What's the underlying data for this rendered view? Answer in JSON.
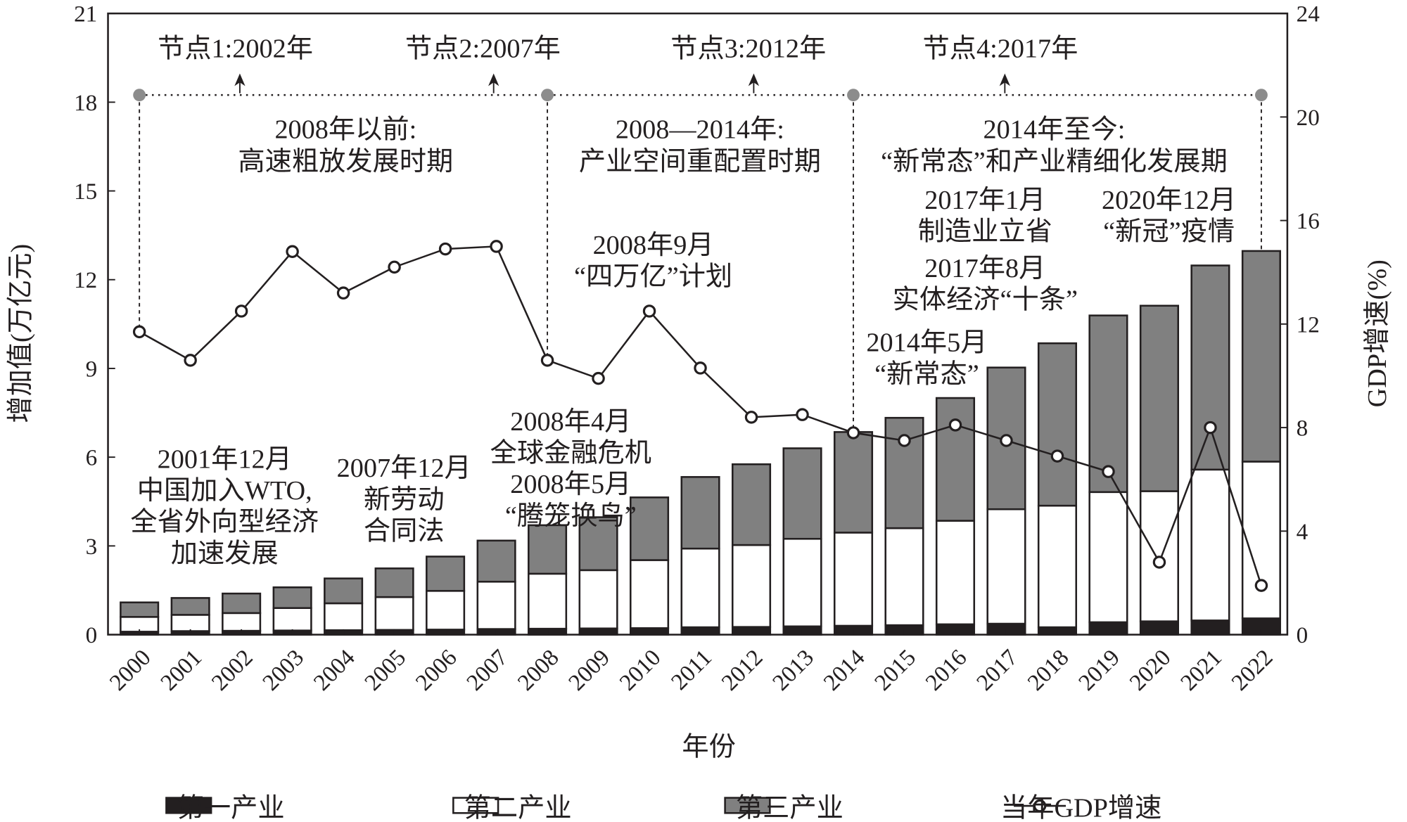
{
  "chart_data": {
    "type": "bar+line",
    "xlabel": "年份",
    "ylabel_left": "增加值(万亿元)",
    "ylabel_right": "GDP增速(%)",
    "ylim_left": [
      0,
      21
    ],
    "ylim_right": [
      0,
      24
    ],
    "yticks_left": [
      "0",
      "3",
      "6",
      "9",
      "12",
      "15",
      "18",
      "21"
    ],
    "yticks_right": [
      "0",
      "4",
      "8",
      "12",
      "16",
      "20",
      "24"
    ],
    "categories": [
      "2000",
      "2001",
      "2002",
      "2003",
      "2004",
      "2005",
      "2006",
      "2007",
      "2008",
      "2009",
      "2010",
      "2011",
      "2012",
      "2013",
      "2014",
      "2015",
      "2016",
      "2017",
      "2018",
      "2019",
      "2020",
      "2021",
      "2022"
    ],
    "series": [
      {
        "name": "第一产业",
        "type": "stacked-bar",
        "color": "#231f20",
        "values": [
          0.1,
          0.12,
          0.13,
          0.14,
          0.15,
          0.16,
          0.17,
          0.19,
          0.2,
          0.21,
          0.22,
          0.25,
          0.26,
          0.28,
          0.3,
          0.32,
          0.35,
          0.37,
          0.25,
          0.42,
          0.45,
          0.48,
          0.55
        ]
      },
      {
        "name": "第二产业",
        "type": "stacked-bar",
        "color": "#ffffff",
        "values": [
          0.5,
          0.55,
          0.6,
          0.76,
          0.91,
          1.11,
          1.31,
          1.6,
          1.86,
          1.97,
          2.3,
          2.66,
          2.77,
          2.96,
          3.15,
          3.28,
          3.5,
          3.87,
          4.11,
          4.4,
          4.4,
          5.1,
          5.3
        ]
      },
      {
        "name": "第三产业",
        "type": "stacked-bar",
        "color": "#808080",
        "values": [
          0.49,
          0.57,
          0.66,
          0.7,
          0.84,
          0.97,
          1.16,
          1.39,
          1.64,
          1.79,
          2.12,
          2.42,
          2.73,
          3.06,
          3.4,
          3.73,
          4.15,
          4.79,
          5.49,
          5.97,
          6.27,
          6.9,
          7.12
        ]
      },
      {
        "name": "当年GDP增速",
        "type": "line",
        "axis": "right",
        "color": "#231f20",
        "values": [
          11.7,
          10.6,
          12.5,
          14.8,
          13.2,
          14.2,
          14.9,
          15.0,
          10.6,
          9.9,
          12.5,
          10.3,
          8.4,
          8.5,
          7.8,
          7.5,
          8.1,
          7.5,
          6.9,
          6.3,
          2.8,
          8.0,
          1.9
        ]
      }
    ],
    "nodes": [
      {
        "year": "2000",
        "label": ""
      },
      {
        "year": "2008",
        "label": ""
      },
      {
        "year": "2014",
        "label": ""
      },
      {
        "year": "2022",
        "label": ""
      }
    ],
    "node_labels": [
      "节点1:2002年",
      "节点2:2007年",
      "节点3:2012年",
      "节点4:2017年"
    ],
    "periods": [
      [
        "2008年以前:",
        "高速粗放发展时期"
      ],
      [
        "2008—2014年:",
        "产业空间重配置时期"
      ],
      [
        "2014年至今:",
        "“新常态”和产业精细化发展期"
      ]
    ],
    "events": [
      [
        "2001年12月",
        "中国加入WTO,",
        "全省外向型经济",
        "加速发展"
      ],
      [
        "2007年12月",
        "新劳动",
        "合同法"
      ],
      [
        "2008年4月",
        "全球金融危机",
        "2008年5月",
        "“腾笼换鸟”"
      ],
      [
        "2008年9月",
        "“四万亿”计划"
      ],
      [
        "2014年5月",
        "“新常态”"
      ],
      [
        "2017年1月",
        "制造业立省"
      ],
      [
        "2017年8月",
        "实体经济“十条”"
      ],
      [
        "2020年12月",
        "“新冠”疫情"
      ]
    ],
    "legend": [
      "第一产业",
      "第二产业",
      "第三产业",
      "当年GDP增速"
    ],
    "legend_placement": "bottom",
    "grid": false
  }
}
